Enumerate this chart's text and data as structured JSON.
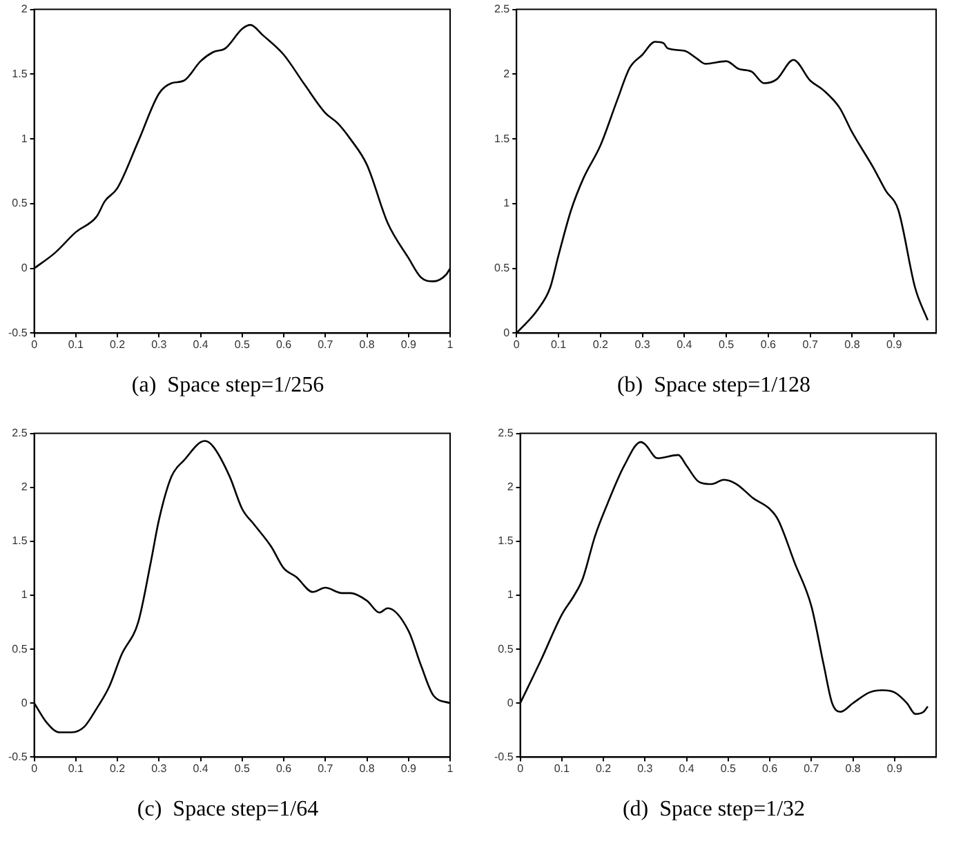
{
  "chart_data": [
    {
      "type": "line",
      "title": "(a)  Space step=1/256",
      "color": "#000000",
      "xlim": [
        0,
        1
      ],
      "ylim": [
        -0.5,
        2
      ],
      "xticks": [
        0,
        0.1,
        0.2,
        0.3,
        0.4,
        0.5,
        0.6,
        0.7,
        0.8,
        0.9,
        1
      ],
      "yticks": [
        -0.5,
        0,
        0.5,
        1,
        1.5,
        2
      ],
      "x": [
        0,
        0.05,
        0.1,
        0.15,
        0.17,
        0.2,
        0.25,
        0.3,
        0.33,
        0.36,
        0.4,
        0.43,
        0.46,
        0.5,
        0.52,
        0.55,
        0.6,
        0.65,
        0.7,
        0.73,
        0.76,
        0.8,
        0.85,
        0.9,
        0.93,
        0.96,
        0.99,
        1
      ],
      "values": [
        0,
        0.12,
        0.28,
        0.4,
        0.52,
        0.62,
        0.98,
        1.35,
        1.43,
        1.45,
        1.6,
        1.67,
        1.7,
        1.85,
        1.88,
        1.8,
        1.65,
        1.42,
        1.2,
        1.12,
        1.0,
        0.8,
        0.35,
        0.08,
        -0.07,
        -0.1,
        -0.05,
        0
      ]
    },
    {
      "type": "line",
      "title": "(b)  Space step=1/128",
      "color": "#000000",
      "xlim": [
        0,
        1
      ],
      "ylim": [
        0,
        2.5
      ],
      "xticks": [
        0,
        0.1,
        0.2,
        0.3,
        0.4,
        0.5,
        0.6,
        0.7,
        0.8,
        0.9
      ],
      "yticks": [
        0,
        0.5,
        1,
        1.5,
        2,
        2.5
      ],
      "x": [
        0,
        0.05,
        0.08,
        0.1,
        0.13,
        0.16,
        0.2,
        0.24,
        0.27,
        0.3,
        0.33,
        0.35,
        0.36,
        0.4,
        0.43,
        0.45,
        0.5,
        0.53,
        0.56,
        0.59,
        0.62,
        0.66,
        0.7,
        0.73,
        0.77,
        0.8,
        0.85,
        0.88,
        0.91,
        0.95,
        0.98
      ],
      "values": [
        0,
        0.18,
        0.35,
        0.6,
        0.95,
        1.2,
        1.45,
        1.8,
        2.05,
        2.15,
        2.25,
        2.24,
        2.2,
        2.18,
        2.12,
        2.08,
        2.1,
        2.04,
        2.02,
        1.93,
        1.96,
        2.11,
        1.95,
        1.88,
        1.74,
        1.55,
        1.28,
        1.1,
        0.95,
        0.35,
        0.1
      ]
    },
    {
      "type": "line",
      "title": "(c)  Space step=1/64",
      "color": "#000000",
      "xlim": [
        0,
        1
      ],
      "ylim": [
        -0.5,
        2.5
      ],
      "xticks": [
        0,
        0.1,
        0.2,
        0.3,
        0.4,
        0.5,
        0.6,
        0.7,
        0.8,
        0.9,
        1
      ],
      "yticks": [
        -0.5,
        0,
        0.5,
        1,
        1.5,
        2,
        2.5
      ],
      "x": [
        0,
        0.03,
        0.06,
        0.09,
        0.12,
        0.15,
        0.18,
        0.21,
        0.25,
        0.28,
        0.3,
        0.33,
        0.36,
        0.41,
        0.43,
        0.47,
        0.5,
        0.53,
        0.57,
        0.6,
        0.63,
        0.67,
        0.7,
        0.74,
        0.76,
        0.8,
        0.83,
        0.85,
        0.9,
        0.93,
        0.96,
        1
      ],
      "values": [
        0,
        -0.18,
        -0.27,
        -0.27,
        -0.22,
        -0.05,
        0.15,
        0.45,
        0.75,
        1.3,
        1.7,
        2.1,
        2.25,
        2.43,
        2.38,
        2.1,
        1.8,
        1.65,
        1.45,
        1.25,
        1.17,
        1.03,
        1.07,
        1.02,
        1.02,
        0.95,
        0.84,
        0.88,
        0.67,
        0.35,
        0.07,
        0
      ]
    },
    {
      "type": "line",
      "title": "(d)  Space step=1/32",
      "color": "#000000",
      "xlim": [
        0,
        1
      ],
      "ylim": [
        -0.5,
        2.5
      ],
      "xticks": [
        0,
        0.1,
        0.2,
        0.3,
        0.4,
        0.5,
        0.6,
        0.7,
        0.8,
        0.9
      ],
      "yticks": [
        -0.5,
        0,
        0.5,
        1,
        1.5,
        2,
        2.5
      ],
      "x": [
        0,
        0.05,
        0.1,
        0.13,
        0.15,
        0.18,
        0.21,
        0.25,
        0.29,
        0.3,
        0.33,
        0.38,
        0.4,
        0.43,
        0.46,
        0.49,
        0.52,
        0.56,
        0.6,
        0.62,
        0.66,
        0.7,
        0.73,
        0.75,
        0.77,
        0.8,
        0.84,
        0.87,
        0.9,
        0.93,
        0.95,
        0.97,
        0.98
      ],
      "values": [
        0,
        0.4,
        0.82,
        1.0,
        1.15,
        1.55,
        1.85,
        2.2,
        2.42,
        2.4,
        2.27,
        2.3,
        2.2,
        2.05,
        2.03,
        2.07,
        2.03,
        1.9,
        1.8,
        1.7,
        1.3,
        0.9,
        0.35,
        0.0,
        -0.08,
        0.0,
        0.1,
        0.12,
        0.1,
        0.0,
        -0.1,
        -0.08,
        -0.03
      ]
    }
  ]
}
